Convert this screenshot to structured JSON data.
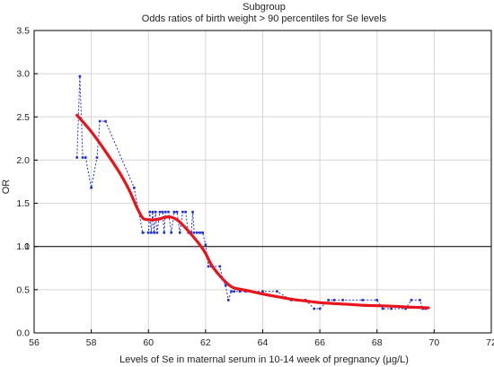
{
  "chart_data": {
    "type": "line",
    "title": "Subgroup",
    "subtitle": "Odds ratios of birth weight > 90 percentiles for Se levels",
    "xlabel": "Levels of Se in maternal serum in 10-14 week of pregnancy (µg/L)",
    "ylabel": "OR",
    "xlim": [
      56,
      72
    ],
    "ylim": [
      0.0,
      3.5
    ],
    "x_ticks": [
      "56",
      "58",
      "60",
      "62",
      "64",
      "66",
      "68",
      "70",
      "72"
    ],
    "y_ticks": [
      "0.0",
      "0.5",
      "1.0",
      "1.5",
      "2.0",
      "2.5",
      "3.0",
      "3.5"
    ],
    "y_tick_values": [
      0,
      0.5,
      1.0,
      1.5,
      2.0,
      2.5,
      3.0,
      3.5
    ],
    "grid": true,
    "reference_line": {
      "y": 1,
      "label": "1",
      "color": "#000000"
    },
    "colors": {
      "observed": "#1f2fd6",
      "smoothed": "#e8141b",
      "grid": "#d6d6d6"
    },
    "series": [
      {
        "style": "dotted-markers",
        "x": [
          57.5,
          57.55,
          57.6,
          57.7,
          57.8,
          58.0,
          58.2,
          58.3,
          58.5,
          59.5,
          59.8,
          60.0,
          60.05,
          60.1,
          60.15,
          60.2,
          60.25,
          60.3,
          60.4,
          60.5,
          60.55,
          60.6,
          60.7,
          60.8,
          60.9,
          61.0,
          61.1,
          61.2,
          61.3,
          61.4,
          61.5,
          61.55,
          61.6,
          61.7,
          61.8,
          61.9,
          62.0,
          62.1,
          62.2,
          62.5,
          62.6,
          62.7,
          62.8,
          62.9,
          63.0,
          63.2,
          63.4,
          64.0,
          64.5,
          65.0,
          65.2,
          65.5,
          65.8,
          66.0,
          66.3,
          66.5,
          66.8,
          67.5,
          68.0,
          68.2,
          68.5,
          69.0,
          69.2,
          69.5,
          69.6,
          69.7
        ],
        "y": [
          2.03,
          2.5,
          2.97,
          2.03,
          2.03,
          1.68,
          2.03,
          2.45,
          2.45,
          1.68,
          1.16,
          1.16,
          1.4,
          1.16,
          1.4,
          1.16,
          1.4,
          1.16,
          1.4,
          1.4,
          1.16,
          1.4,
          1.4,
          1.16,
          1.4,
          1.4,
          1.16,
          1.4,
          1.4,
          1.16,
          1.16,
          1.4,
          1.16,
          1.16,
          1.16,
          1.16,
          1.02,
          0.77,
          0.77,
          0.77,
          0.62,
          0.55,
          0.38,
          0.48,
          0.48,
          0.48,
          0.48,
          0.48,
          0.48,
          0.38,
          0.38,
          0.38,
          0.28,
          0.28,
          0.38,
          0.38,
          0.38,
          0.38,
          0.38,
          0.28,
          0.28,
          0.28,
          0.38,
          0.38,
          0.28,
          0.28
        ]
      },
      {
        "style": "smoothed",
        "x": [
          57.5,
          58.0,
          58.5,
          59.0,
          59.3,
          59.6,
          59.8,
          60.0,
          60.2,
          60.4,
          60.6,
          60.8,
          61.0,
          61.2,
          61.5,
          61.8,
          62.0,
          62.2,
          62.5,
          62.8,
          63.0,
          63.3,
          63.6,
          64.0,
          64.5,
          65.0,
          65.5,
          66.0,
          66.5,
          67.0,
          67.5,
          68.0,
          68.5,
          69.0,
          69.5,
          69.8
        ],
        "y": [
          2.52,
          2.33,
          2.1,
          1.85,
          1.67,
          1.45,
          1.33,
          1.31,
          1.31,
          1.32,
          1.34,
          1.34,
          1.31,
          1.25,
          1.14,
          1.02,
          0.92,
          0.79,
          0.66,
          0.56,
          0.52,
          0.5,
          0.48,
          0.45,
          0.42,
          0.39,
          0.37,
          0.35,
          0.34,
          0.33,
          0.32,
          0.315,
          0.31,
          0.3,
          0.295,
          0.29
        ]
      }
    ]
  }
}
